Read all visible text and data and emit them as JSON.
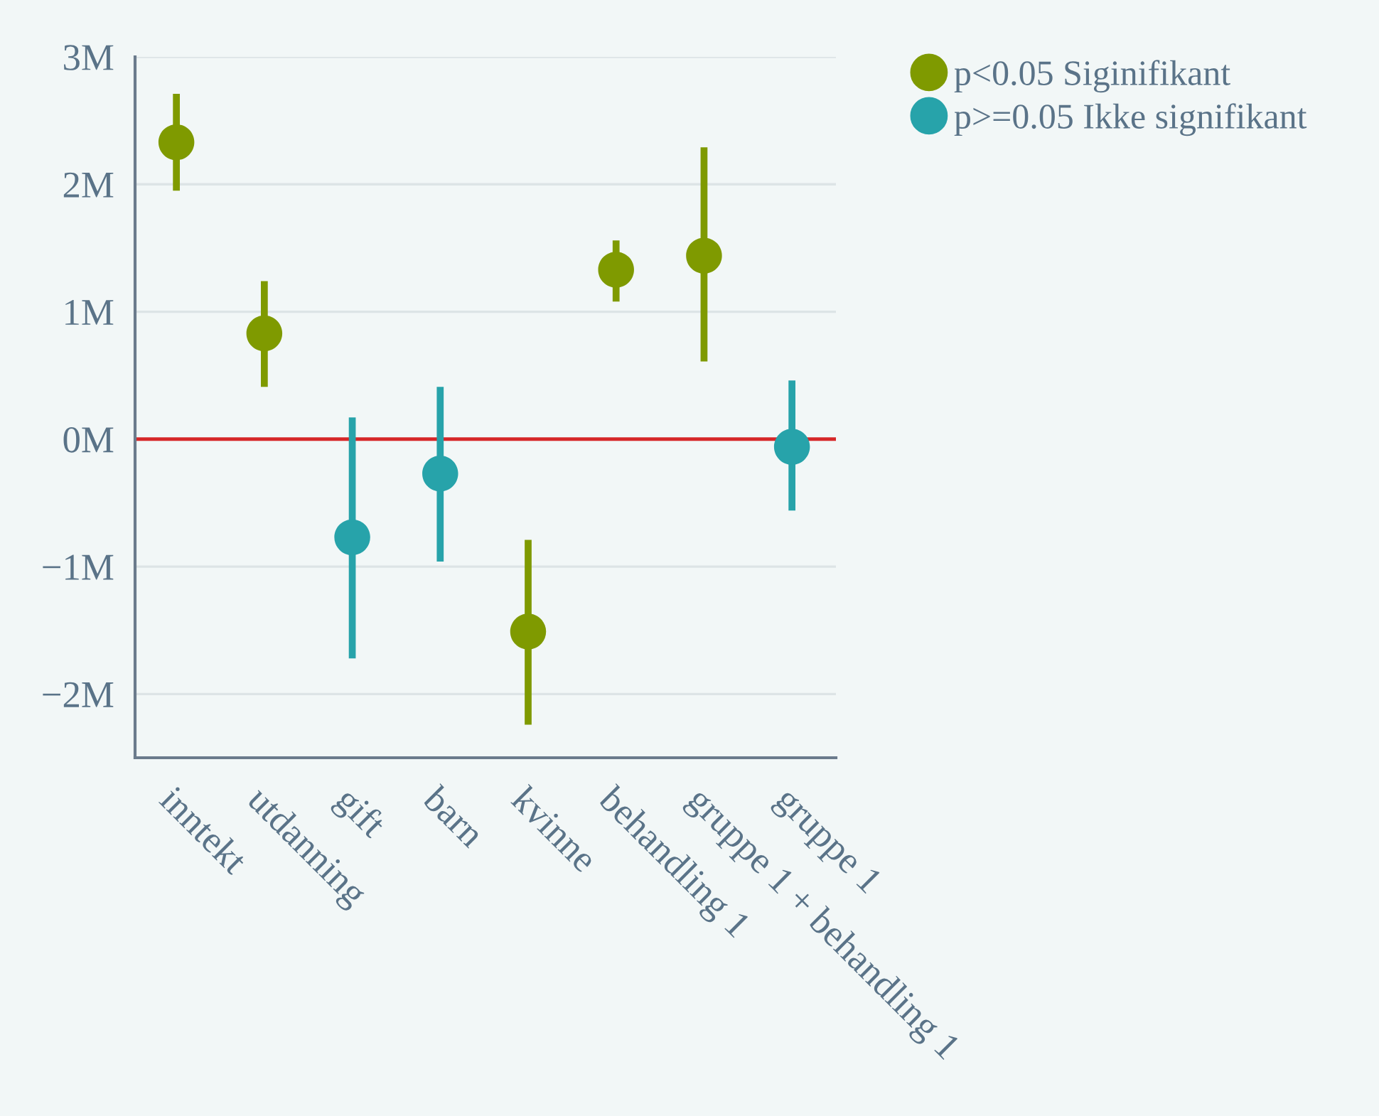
{
  "chart_data": {
    "type": "scatter",
    "categories": [
      "inntekt",
      "utdanning",
      "gift",
      "barn",
      "kvinne",
      "behandling 1",
      "gruppe 1 + behandling 1",
      "gruppe 1"
    ],
    "series": [
      {
        "name": "p<0.05 Siginifikant",
        "color": "#7f9a00",
        "values": [
          2330000,
          830000,
          null,
          null,
          -1510000,
          1330000,
          1440000,
          null
        ],
        "errors": [
          [
            1950000,
            2710000
          ],
          [
            410000,
            1240000
          ],
          null,
          null,
          [
            -2240000,
            -790000
          ],
          [
            1080000,
            1560000
          ],
          [
            610000,
            2290000
          ],
          null
        ]
      },
      {
        "name": "p>=0.05 Ikke signifikant",
        "color": "#27a3aa",
        "values": [
          null,
          null,
          -770000,
          -270000,
          null,
          null,
          null,
          -60000
        ],
        "errors": [
          null,
          null,
          [
            -1720000,
            170000
          ],
          [
            -960000,
            410000
          ],
          null,
          null,
          null,
          [
            -560000,
            460000
          ]
        ]
      }
    ],
    "ylim": [
      -2500000,
      3000000
    ],
    "yticks": [
      {
        "value": -2000000,
        "label": "−2M"
      },
      {
        "value": -1000000,
        "label": "−1M"
      },
      {
        "value": 0,
        "label": "0M"
      },
      {
        "value": 1000000,
        "label": "1M"
      },
      {
        "value": 2000000,
        "label": "2M"
      },
      {
        "value": 3000000,
        "label": "3M"
      }
    ],
    "ref_lines": [
      {
        "axis": "y",
        "value": 0,
        "color": "#d62728"
      }
    ],
    "grid": "y",
    "legend": "top right",
    "marker": "circle"
  }
}
